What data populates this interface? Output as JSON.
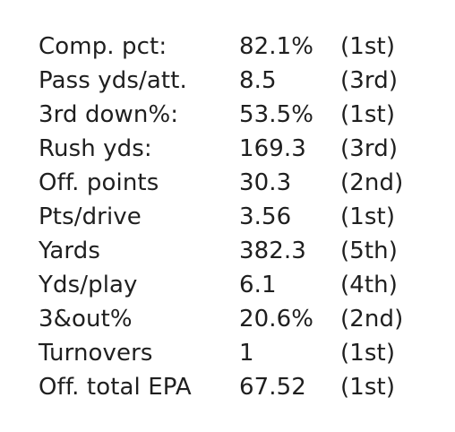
{
  "rows": [
    {
      "label": "Comp. pct:",
      "value": "82.1%",
      "rank": "(1st)"
    },
    {
      "label": "Pass yds/att.",
      "value": "8.5",
      "rank": "(3rd)"
    },
    {
      "label": "3rd down%:",
      "value": "53.5%",
      "rank": "(1st)"
    },
    {
      "label": "Rush yds:",
      "value": "169.3",
      "rank": "(3rd)"
    },
    {
      "label": "Off. points",
      "value": "30.3",
      "rank": "(2nd)"
    },
    {
      "label": "Pts/drive",
      "value": "3.56",
      "rank": "(1st)"
    },
    {
      "label": "Yards",
      "value": "382.3",
      "rank": "(5th)"
    },
    {
      "label": "Yds/play",
      "value": "6.1",
      "rank": "(4th)"
    },
    {
      "label": "3&out%",
      "value": "20.6%",
      "rank": "(2nd)"
    },
    {
      "label": "Turnovers",
      "value": "1",
      "rank": "(1st)"
    },
    {
      "label": "Off. total EPA",
      "value": "67.52",
      "rank": "(1st)"
    }
  ]
}
